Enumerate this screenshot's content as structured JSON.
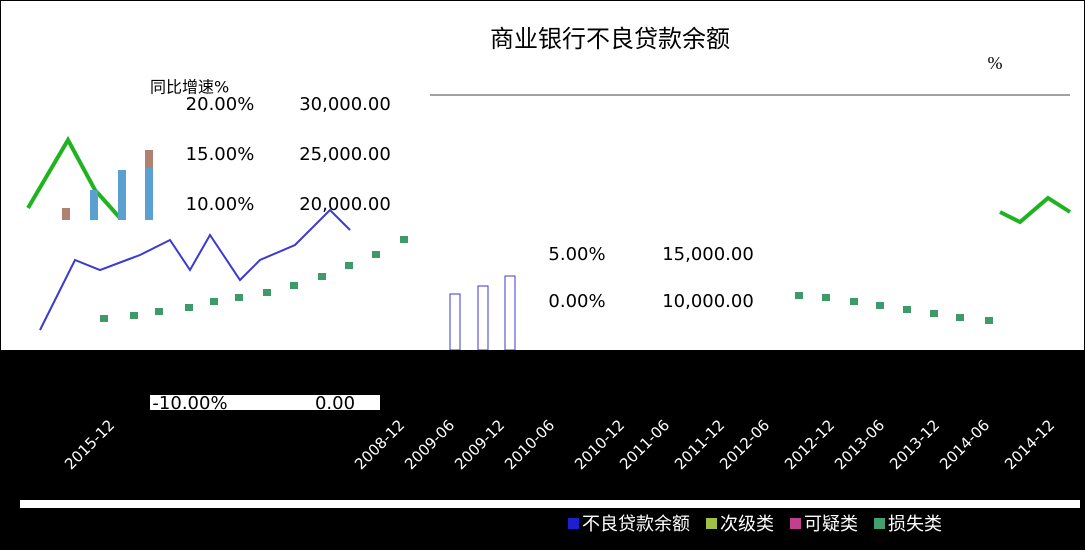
{
  "header": {
    "title": "商业银行不良贷款余额",
    "unit": "%"
  },
  "axis_labels": {
    "left_series": "同比增速%"
  },
  "tick_pairs": [
    [
      "20.00%",
      "30,000.00"
    ],
    [
      "15.00%",
      "25,000.00"
    ],
    [
      "10.00%",
      "20,000.00"
    ],
    [
      "5.00%",
      "15,000.00"
    ],
    [
      "0.00%",
      "10,000.00"
    ],
    [
      "-10.00%",
      "0.00"
    ]
  ],
  "dates": [
    "2015-12",
    "2008-12",
    "2009-06",
    "2009-12",
    "2010-06",
    "2010-12",
    "2011-06",
    "2011-12",
    "2012-06",
    "2012-12",
    "2013-06",
    "2013-12",
    "2014-06",
    "2014-12"
  ],
  "legend": [
    "不良贷款余额",
    "次级类",
    "可疑类",
    "损失类"
  ]
}
